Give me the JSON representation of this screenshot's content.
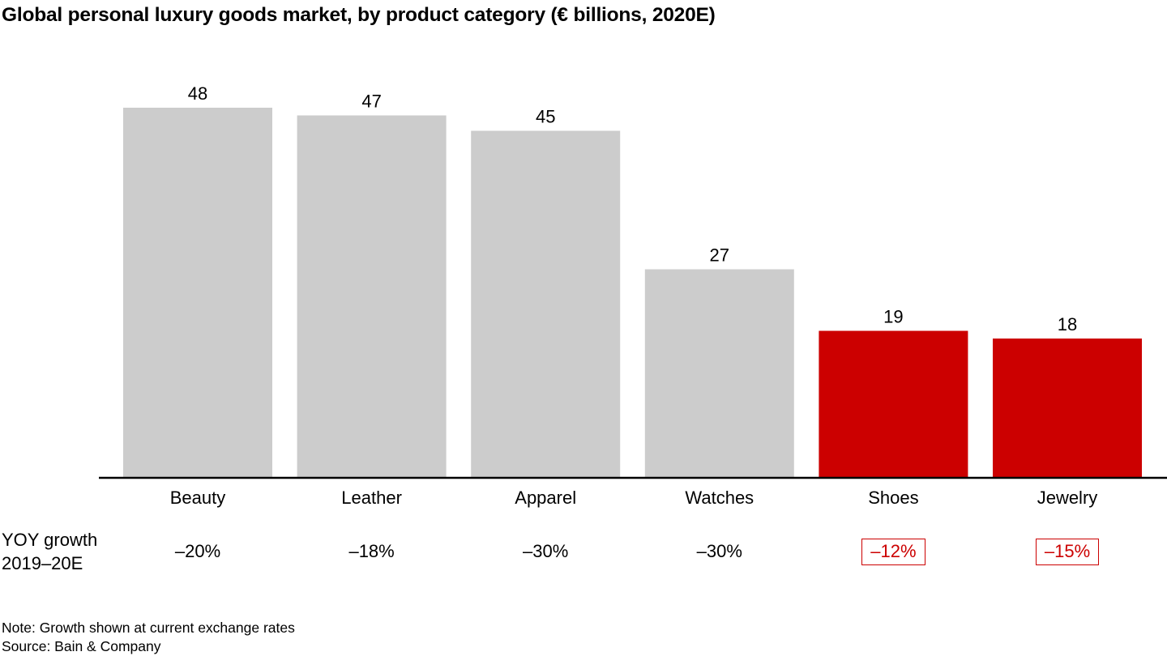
{
  "chart_data": {
    "type": "bar",
    "title": "Global personal luxury goods market, by product category (€ billions, 2020E)",
    "xlabel": "",
    "ylabel": "€ billions",
    "ylim": [
      0,
      48
    ],
    "grid": false,
    "categories": [
      "Beauty",
      "Leather",
      "Apparel",
      "Watches",
      "Shoes",
      "Jewelry"
    ],
    "values": [
      48,
      47,
      45,
      27,
      19,
      18
    ],
    "data_labels": [
      "48",
      "47",
      "45",
      "27",
      "19",
      "18"
    ],
    "highlighted": [
      false,
      false,
      false,
      false,
      true,
      true
    ],
    "colors": {
      "default": "#cccccc",
      "highlight": "#cc0000",
      "axis": "#000000",
      "text": "#000000"
    },
    "growth_row": {
      "label_line1": "YOY growth",
      "label_line2": "2019–20E",
      "values": [
        "–20%",
        "–18%",
        "–30%",
        "–30%",
        "–12%",
        "–15%"
      ]
    },
    "note": "Note: Growth shown at current exchange rates",
    "source": "Source: Bain & Company"
  }
}
